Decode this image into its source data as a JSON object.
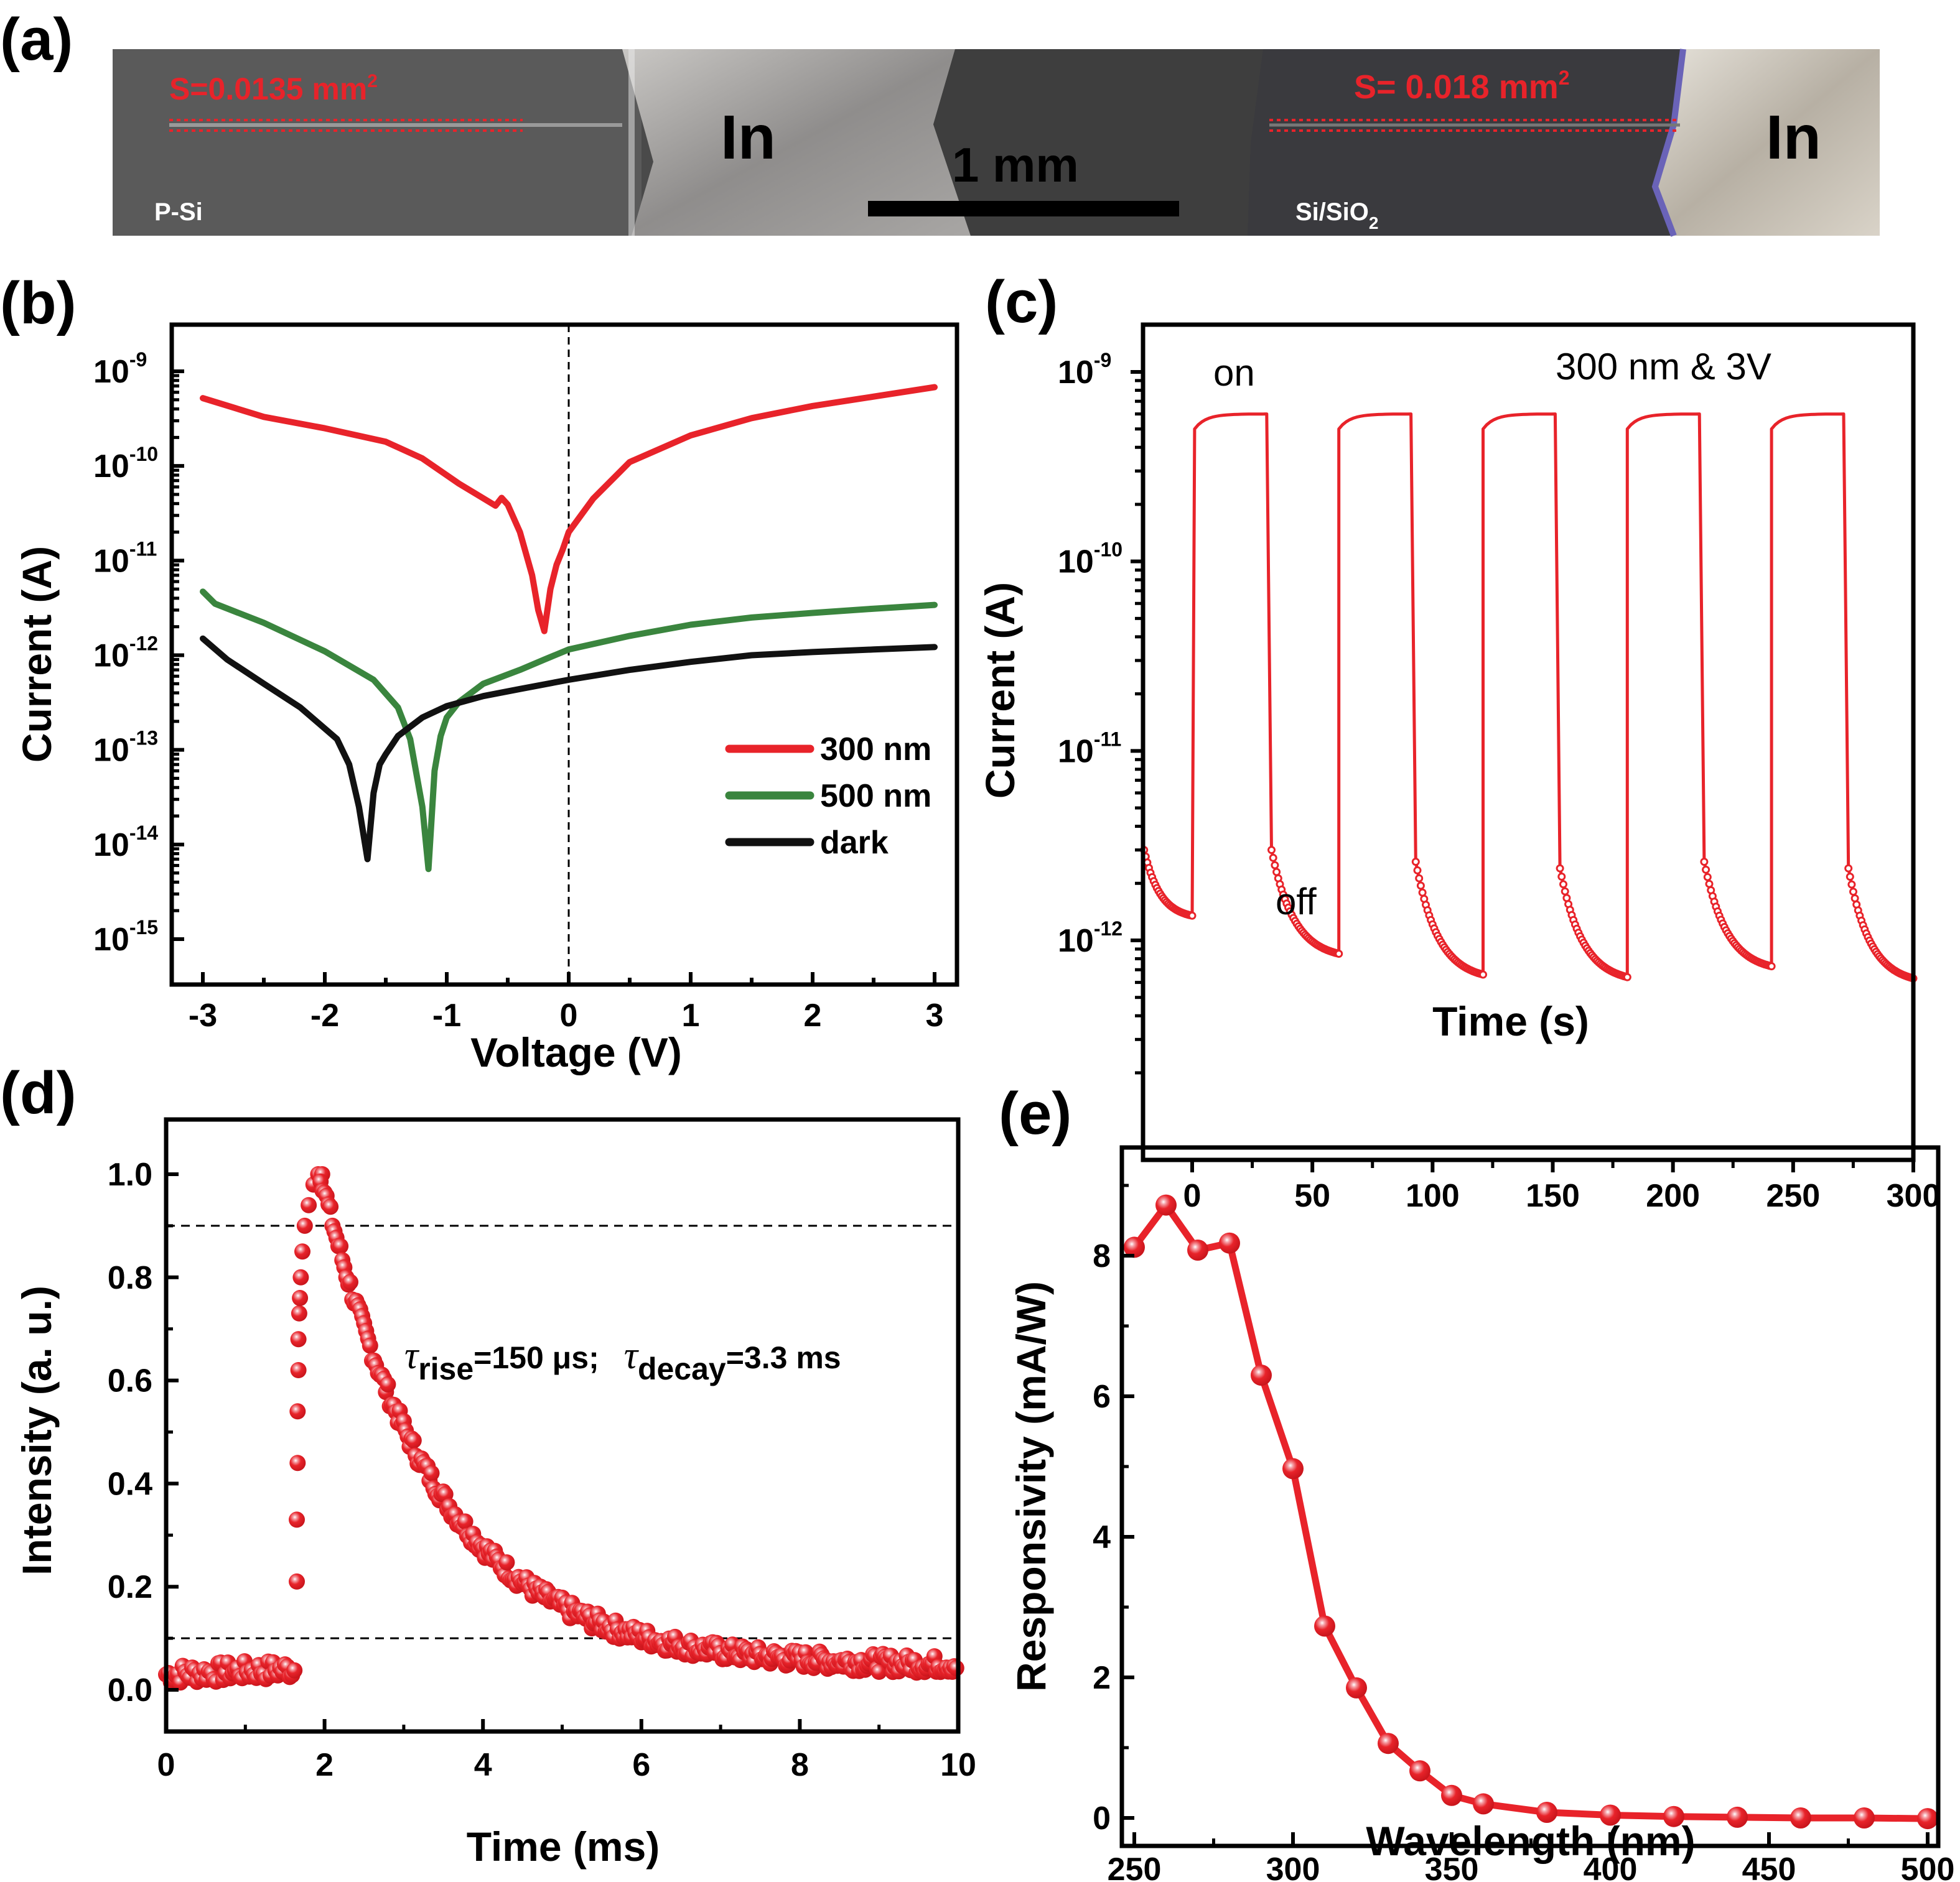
{
  "figure": {
    "panels": [
      "(a)",
      "(b)",
      "(c)",
      "(d)",
      "(e)"
    ]
  },
  "photo": {
    "region_left": "P-Si",
    "region_right": "Si/SiO",
    "region_right_sub": "2",
    "contact_left": "In",
    "contact_right": "In",
    "area_left": "S=0.0135 mm",
    "area_right": "S= 0.018 mm",
    "area_sup": "2",
    "scalebar_label": "1 mm",
    "colors": {
      "annotation": "#e8232a",
      "dark_region": "#3c3c3c",
      "metal": "#b8b6b4"
    }
  },
  "chart_data": [
    {
      "id": "b",
      "type": "line",
      "xlabel": "Voltage (V)",
      "ylabel": "Current (A)",
      "xlim": [
        -3.25,
        3.25
      ],
      "ylim_log10": [
        -15.35,
        -8.55
      ],
      "yscale": "log",
      "x_ticks": [
        -3,
        -2,
        -1,
        0,
        1,
        2,
        3
      ],
      "x_tick_labels": [
        "-3",
        "-2",
        "-1",
        "0",
        "1",
        "2",
        "3"
      ],
      "y_ticks_exp": [
        -9,
        -10,
        -11,
        -12,
        -13,
        -14,
        -15
      ],
      "y_tick_base": "10",
      "reference_line_x": 0,
      "legend": {
        "position": "bottom-right",
        "entries": [
          "300 nm",
          "500 nm",
          "dark"
        ]
      },
      "series": [
        {
          "name": "300 nm",
          "color": "#e8232a",
          "x": [
            -3,
            -2.5,
            -2,
            -1.5,
            -1.2,
            -0.9,
            -0.6,
            -0.55,
            -0.5,
            -0.4,
            -0.3,
            -0.25,
            -0.2,
            -0.15,
            -0.1,
            -0.05,
            0,
            0.2,
            0.5,
            1,
            1.5,
            2,
            2.5,
            3
          ],
          "y": [
            5.2e-10,
            3.3e-10,
            2.5e-10,
            1.8e-10,
            1.2e-10,
            6.5e-11,
            3.8e-11,
            4.6e-11,
            3.9e-11,
            2e-11,
            7e-12,
            3e-12,
            1.8e-12,
            5e-12,
            9e-12,
            1.3e-11,
            2e-11,
            4.5e-11,
            1.1e-10,
            2.1e-10,
            3.2e-10,
            4.3e-10,
            5.4e-10,
            6.8e-10
          ]
        },
        {
          "name": "500 nm",
          "color": "#3a853e",
          "x": [
            -3,
            -2.9,
            -2.5,
            -2,
            -1.6,
            -1.4,
            -1.3,
            -1.2,
            -1.15,
            -1.1,
            -1.05,
            -1.0,
            -0.9,
            -0.7,
            -0.4,
            -0.2,
            0,
            0.5,
            1,
            1.5,
            2,
            2.5,
            3
          ],
          "y": [
            4.7e-12,
            3.5e-12,
            2.2e-12,
            1.1e-12,
            5.5e-13,
            2.8e-13,
            1.3e-13,
            2.5e-14,
            5.5e-15,
            6e-14,
            1.4e-13,
            2.2e-13,
            3.2e-13,
            5e-13,
            7e-13,
            9e-13,
            1.15e-12,
            1.6e-12,
            2.1e-12,
            2.5e-12,
            2.8e-12,
            3.1e-12,
            3.4e-12
          ]
        },
        {
          "name": "dark",
          "color": "#111111",
          "x": [
            -3,
            -2.8,
            -2.5,
            -2.2,
            -1.9,
            -1.8,
            -1.72,
            -1.65,
            -1.6,
            -1.55,
            -1.5,
            -1.4,
            -1.2,
            -1.0,
            -0.7,
            -0.4,
            0,
            0.5,
            1,
            1.5,
            2,
            2.5,
            3
          ],
          "y": [
            1.5e-12,
            9e-13,
            5e-13,
            2.8e-13,
            1.3e-13,
            7e-14,
            2.5e-14,
            7e-15,
            3.5e-14,
            7e-14,
            9e-14,
            1.4e-13,
            2.2e-13,
            2.9e-13,
            3.7e-13,
            4.4e-13,
            5.5e-13,
            7e-13,
            8.5e-13,
            1e-12,
            1.08e-12,
            1.15e-12,
            1.22e-12
          ]
        }
      ]
    },
    {
      "id": "c",
      "type": "line",
      "xlabel": "Time (s)",
      "ylabel": "Current (A)",
      "xlim": [
        -20,
        300
      ],
      "ylim_log10": [
        -12.52,
        -8.7
      ],
      "yscale": "log",
      "x_ticks": [
        0,
        50,
        100,
        150,
        200,
        250,
        300
      ],
      "x_tick_labels": [
        "0",
        "50",
        "100",
        "150",
        "200",
        "250",
        "300"
      ],
      "y_ticks_exp": [
        -9,
        -10,
        -11,
        -12
      ],
      "y_tick_base": "10",
      "annotations": [
        "on",
        "off",
        "300 nm & 3V"
      ],
      "color": "#e8232a",
      "on_current": 6e-10,
      "on_start_current": 5e-10,
      "cycles": [
        {
          "on": 1,
          "off": 31,
          "off_start": 3e-12,
          "off_end": 8.5e-13
        },
        {
          "on": 61,
          "off": 91,
          "off_start": 2.6e-12,
          "off_end": 6.6e-13
        },
        {
          "on": 121,
          "off": 151,
          "off_start": 2.4e-12,
          "off_end": 6.4e-13
        },
        {
          "on": 181,
          "off": 211,
          "off_start": 2.6e-12,
          "off_end": 7.3e-13
        },
        {
          "on": 241,
          "off": 271,
          "off_start": 2.4e-12,
          "off_end": 6.3e-13
        }
      ],
      "initial_segment": {
        "t_start": -20,
        "t_end": 0,
        "i_start": 3e-12,
        "i_end": 1.35e-12
      }
    },
    {
      "id": "d",
      "type": "scatter",
      "xlabel": "Time (ms)",
      "ylabel": "Intensity (a. u.)",
      "xlim": [
        0,
        10
      ],
      "ylim": [
        -0.1,
        1.1
      ],
      "x_ticks": [
        0,
        2,
        4,
        6,
        8,
        10
      ],
      "x_tick_labels": [
        "0",
        "2",
        "4",
        "6",
        "8",
        "10"
      ],
      "y_ticks": [
        0.0,
        0.2,
        0.4,
        0.6,
        0.8,
        1.0
      ],
      "y_tick_labels": [
        "0.0",
        "0.2",
        "0.4",
        "0.6",
        "0.8",
        "1.0"
      ],
      "reference_lines_y": [
        0.9,
        0.1
      ],
      "annotation": {
        "tau": "τ",
        "rise_sub": "rise",
        "rise_val": "=150 μs;",
        "decay_sub": "decay",
        "decay_val": "=3.3 ms"
      },
      "color": "#e8232a",
      "baseline": 0.03,
      "rise_start_ms": 1.65,
      "peak_ms": 1.95,
      "peak": 1.0,
      "decay_tau_ms": 1.45,
      "tail": 0.045,
      "rise_points": {
        "x": [
          1.65,
          1.65,
          1.66,
          1.66,
          1.67,
          1.67,
          1.68,
          1.69,
          1.7,
          1.72,
          1.75,
          1.8,
          1.86,
          1.92,
          1.97
        ],
        "y": [
          0.21,
          0.33,
          0.44,
          0.54,
          0.62,
          0.68,
          0.73,
          0.76,
          0.8,
          0.85,
          0.9,
          0.94,
          0.98,
          1.0,
          1.0
        ]
      }
    },
    {
      "id": "e",
      "type": "line",
      "xlabel": "Wavelength (nm)",
      "ylabel": "Responsivity (mA/W)",
      "xlim": [
        245,
        505
      ],
      "ylim": [
        -0.5,
        9.4
      ],
      "x_ticks": [
        250,
        300,
        350,
        400,
        450,
        500
      ],
      "x_tick_labels": [
        "250",
        "300",
        "350",
        "400",
        "450",
        "500"
      ],
      "y_ticks": [
        0,
        2,
        4,
        6,
        8
      ],
      "y_tick_labels": [
        "0",
        "2",
        "4",
        "6",
        "8"
      ],
      "color": "#e8232a",
      "x": [
        250,
        260,
        270,
        280,
        290,
        300,
        310,
        320,
        330,
        340,
        350,
        360,
        380,
        400,
        420,
        440,
        460,
        480,
        500
      ],
      "y": [
        8.12,
        8.72,
        8.08,
        8.18,
        6.3,
        4.97,
        2.73,
        1.85,
        1.06,
        0.67,
        0.32,
        0.2,
        0.08,
        0.04,
        0.02,
        0.01,
        0.0,
        0.0,
        -0.01
      ]
    }
  ]
}
